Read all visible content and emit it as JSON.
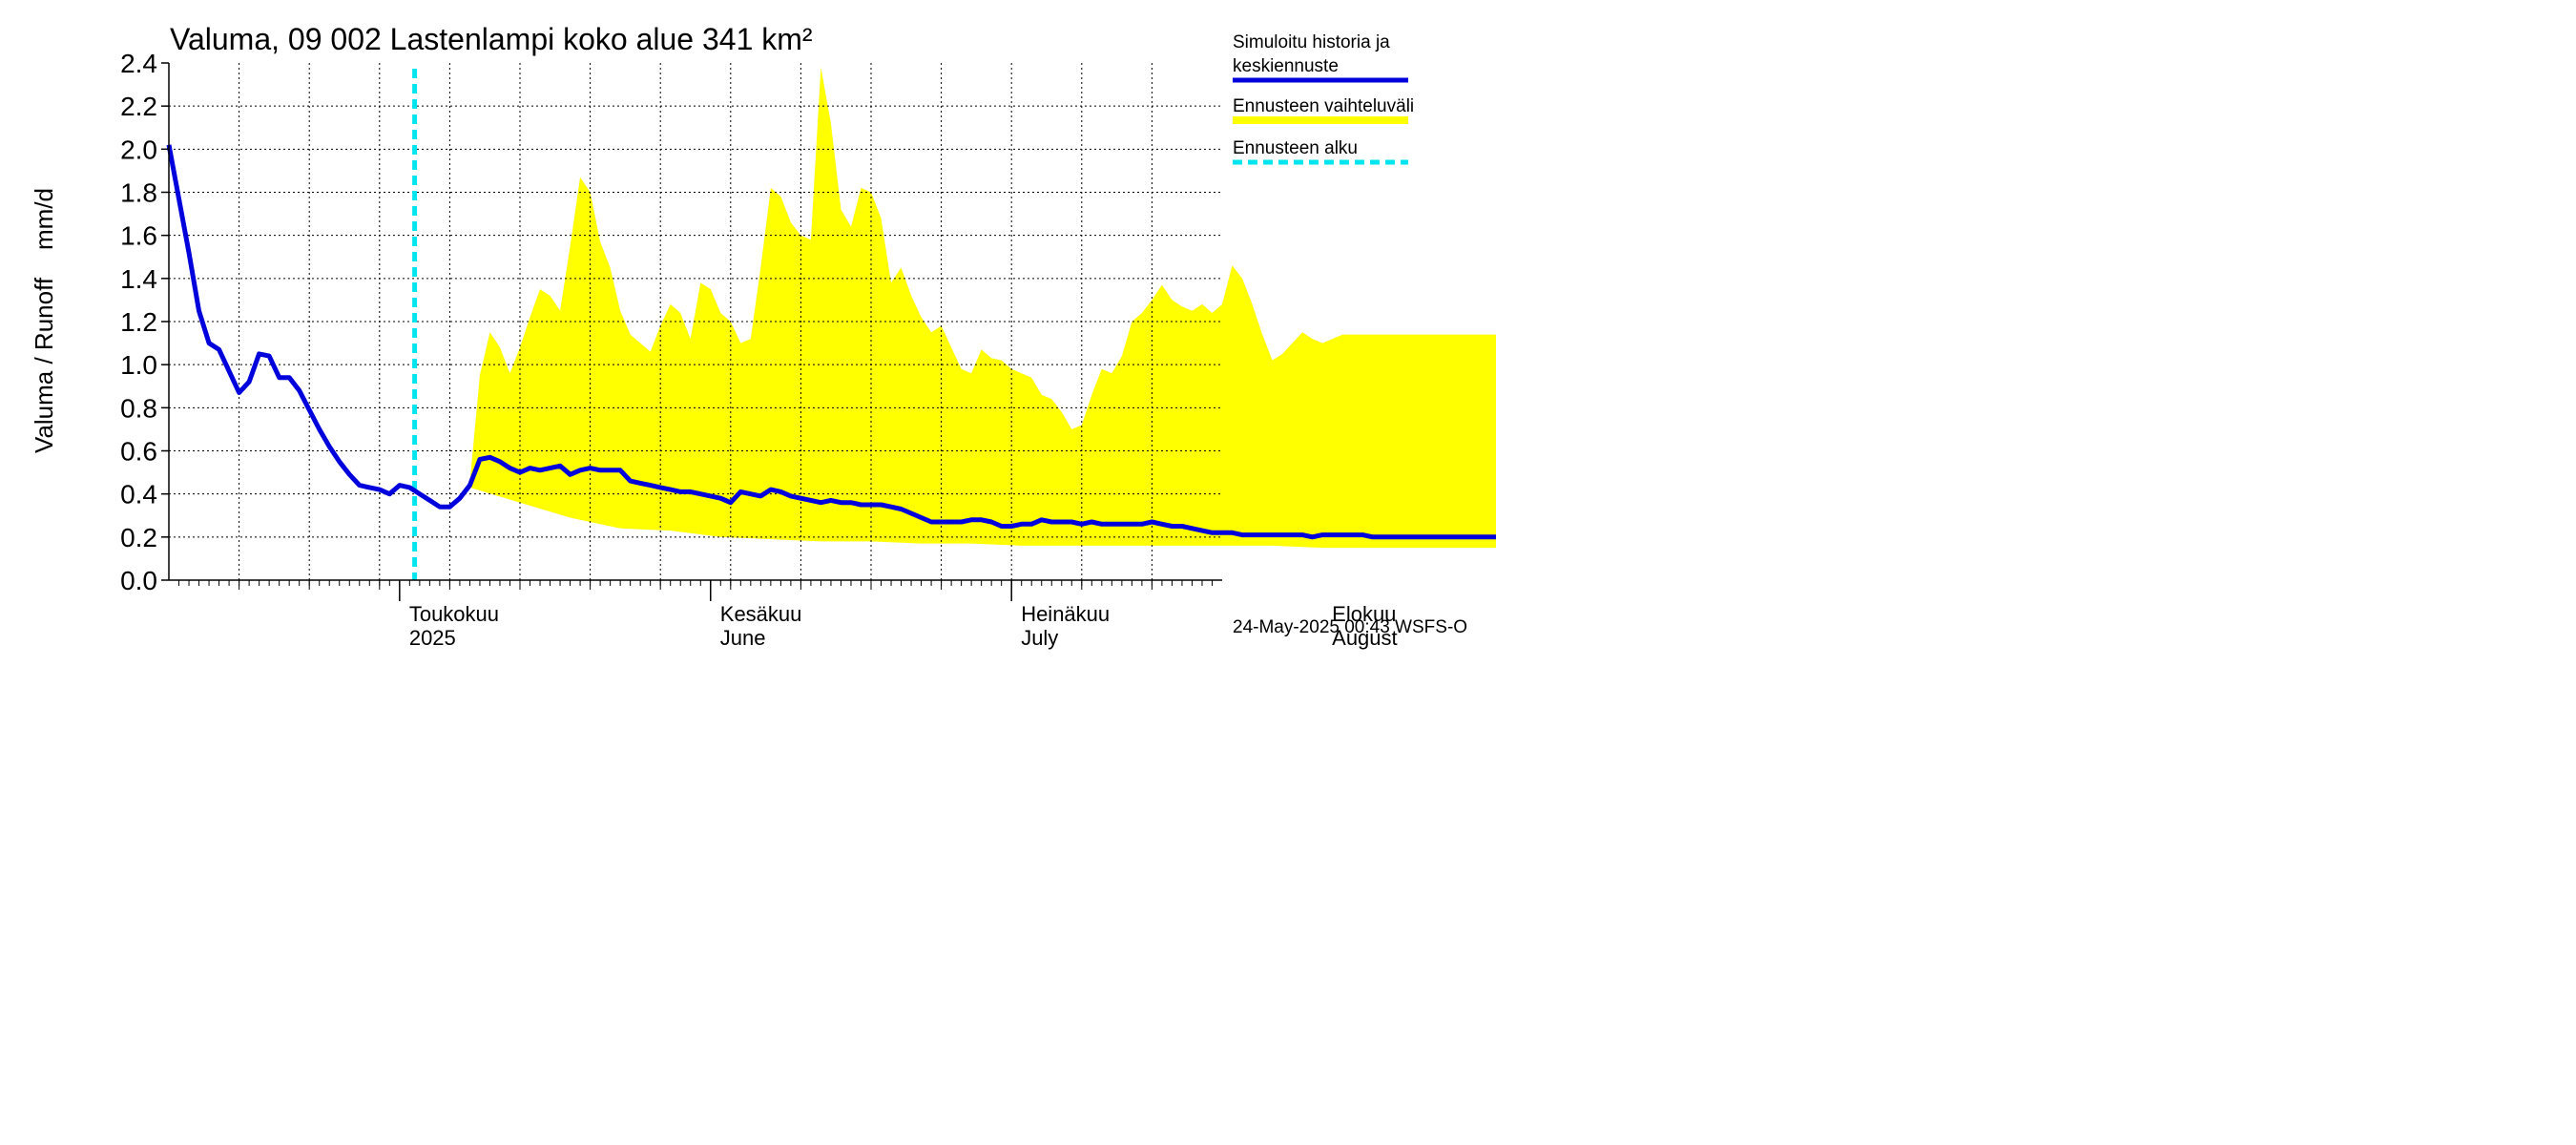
{
  "chart_data": {
    "type": "area",
    "title": "Valuma, 09 002 Lastenlampi koko alue 341 km²",
    "ylabel": "Valuma / Runoff    mm/d",
    "ylim": [
      0.0,
      2.4
    ],
    "yticks": [
      "0.0",
      "0.2",
      "0.4",
      "0.6",
      "0.8",
      "1.0",
      "1.2",
      "1.4",
      "1.6",
      "1.8",
      "2.0",
      "2.2",
      "2.4"
    ],
    "x_start": "2025-04-08",
    "x_days": 105,
    "forecast_start_day": 24.5,
    "month_labels": [
      {
        "line1": "Toukokuu",
        "line2": "2025",
        "day": 23
      },
      {
        "line1": "Kesäkuu",
        "line2": "June",
        "day": 54
      },
      {
        "line1": "Heinäkuu",
        "line2": "July",
        "day": 84
      },
      {
        "line1": "Elokuu",
        "line2": "August",
        "day": 115
      }
    ],
    "month_starts": [
      23,
      54,
      84,
      115
    ],
    "legend": [
      {
        "label": "Simuloitu historia ja keskiennuste",
        "line1": "Simuloitu historia ja",
        "line2": "keskiennuste",
        "color": "#0000dd",
        "style": "solid"
      },
      {
        "label": "Ennusteen vaihteluväli",
        "color": "#ffff00",
        "style": "band"
      },
      {
        "label": "Ennusteen alku",
        "color": "#00e5ee",
        "style": "dashed"
      }
    ],
    "footer": "24-May-2025 00:43 WSFS-O",
    "series": [
      {
        "name": "Simuloitu historia ja keskiennuste",
        "x": [
          0,
          1,
          2,
          3,
          4,
          5,
          6,
          7,
          8,
          9,
          10,
          11,
          12,
          13,
          14,
          15,
          16,
          17,
          18,
          19,
          20,
          21,
          22,
          23,
          24,
          25,
          26,
          27,
          28,
          29,
          30,
          31,
          32,
          33,
          34,
          35,
          36,
          37,
          38,
          39,
          40,
          41,
          42,
          43,
          44,
          45,
          46,
          47,
          48,
          49,
          50,
          51,
          52,
          53,
          54,
          55,
          56,
          57,
          58,
          59,
          60,
          61,
          62,
          63,
          64,
          65,
          66,
          67,
          68,
          69,
          70,
          71,
          72,
          73,
          74,
          75,
          76,
          77,
          78,
          79,
          80,
          81,
          82,
          83,
          84,
          85,
          86,
          87,
          88,
          89,
          90,
          91,
          92,
          93,
          94,
          95,
          96,
          97,
          98,
          99,
          100,
          101,
          102,
          103,
          104,
          105,
          106,
          107,
          108,
          109,
          110,
          111,
          112,
          113,
          114,
          115,
          116,
          117,
          118,
          119,
          120,
          121,
          122,
          123,
          124,
          125,
          126,
          127,
          128,
          129,
          130,
          131,
          132,
          133,
          134,
          135,
          136,
          137,
          138,
          139,
          140,
          141,
          142,
          143,
          144
        ],
        "values": [
          2.02,
          1.77,
          1.52,
          1.25,
          1.1,
          1.07,
          0.97,
          0.87,
          0.92,
          1.05,
          1.04,
          0.94,
          0.94,
          0.88,
          0.79,
          0.7,
          0.62,
          0.55,
          0.49,
          0.44,
          0.43,
          0.42,
          0.4,
          0.44,
          0.43,
          0.4,
          0.37,
          0.34,
          0.34,
          0.38,
          0.44,
          0.56,
          0.57,
          0.55,
          0.52,
          0.5,
          0.52,
          0.51,
          0.52,
          0.53,
          0.49,
          0.51,
          0.52,
          0.51,
          0.51,
          0.51,
          0.46,
          0.45,
          0.44,
          0.43,
          0.42,
          0.41,
          0.41,
          0.4,
          0.39,
          0.38,
          0.36,
          0.41,
          0.4,
          0.39,
          0.42,
          0.41,
          0.39,
          0.38,
          0.37,
          0.36,
          0.37,
          0.36,
          0.36,
          0.35,
          0.35,
          0.35,
          0.34,
          0.33,
          0.31,
          0.29,
          0.27,
          0.27,
          0.27,
          0.27,
          0.28,
          0.28,
          0.27,
          0.25,
          0.25,
          0.26,
          0.26,
          0.28,
          0.27,
          0.27,
          0.27,
          0.26,
          0.27,
          0.26,
          0.26,
          0.26,
          0.26,
          0.26,
          0.27,
          0.26,
          0.25,
          0.25,
          0.24,
          0.23,
          0.22,
          0.22,
          0.22,
          0.21,
          0.21,
          0.21,
          0.21,
          0.21,
          0.21,
          0.21,
          0.2,
          0.21,
          0.21,
          0.21,
          0.21,
          0.21,
          0.2,
          0.2,
          0.2,
          0.2,
          0.2,
          0.2,
          0.2,
          0.2,
          0.2,
          0.2,
          0.2,
          0.2,
          0.2,
          0.2,
          0.2,
          0.2,
          0.2,
          0.2,
          0.2,
          0.2,
          0.2,
          0.2,
          0.2,
          0.2,
          0.19
        ]
      },
      {
        "name": "Ennusteen vaihteluväli (yläraja)",
        "x": [
          30,
          31,
          32,
          33,
          34,
          35,
          36,
          37,
          38,
          39,
          40,
          41,
          42,
          43,
          44,
          45,
          46,
          47,
          48,
          49,
          50,
          51,
          52,
          53,
          54,
          55,
          56,
          57,
          58,
          59,
          60,
          61,
          62,
          63,
          64,
          65,
          66,
          67,
          68,
          69,
          70,
          71,
          72,
          73,
          74,
          75,
          76,
          77,
          78,
          79,
          80,
          81,
          82,
          83,
          84,
          85,
          86,
          87,
          88,
          89,
          90,
          91,
          92,
          93,
          94,
          95,
          96,
          97,
          98,
          99,
          100,
          101,
          102,
          103,
          104,
          105,
          106,
          107,
          108,
          109,
          110,
          111,
          112,
          113,
          114,
          115,
          116,
          117,
          118,
          119,
          120,
          121,
          122,
          123,
          124,
          125,
          126,
          127,
          128,
          129,
          130,
          131,
          132,
          133,
          134,
          135,
          136,
          137,
          138,
          139,
          140,
          141,
          142,
          143,
          144
        ],
        "values": [
          0.45,
          0.95,
          1.15,
          1.08,
          0.96,
          1.08,
          1.22,
          1.35,
          1.32,
          1.25,
          1.55,
          1.87,
          1.8,
          1.57,
          1.45,
          1.25,
          1.14,
          1.1,
          1.06,
          1.18,
          1.28,
          1.24,
          1.12,
          1.38,
          1.35,
          1.24,
          1.2,
          1.1,
          1.12,
          1.45,
          1.82,
          1.78,
          1.66,
          1.6,
          1.58,
          2.38,
          2.12,
          1.72,
          1.64,
          1.82,
          1.8,
          1.68,
          1.38,
          1.45,
          1.32,
          1.22,
          1.15,
          1.18,
          1.08,
          0.98,
          0.96,
          1.07,
          1.03,
          1.02,
          0.98,
          0.96,
          0.94,
          0.86,
          0.84,
          0.78,
          0.7,
          0.72,
          0.86,
          0.98,
          0.96,
          1.04,
          1.2,
          1.24,
          1.3,
          1.37,
          1.3,
          1.27,
          1.25,
          1.28,
          1.24,
          1.28,
          1.46,
          1.4,
          1.28,
          1.14,
          1.02,
          1.05,
          1.1,
          1.15,
          1.12,
          1.1,
          1.12,
          1.14,
          1.14,
          1.14,
          1.14,
          1.14,
          1.14,
          1.14,
          1.14,
          1.14,
          1.14,
          1.14,
          1.14,
          1.14,
          1.14,
          1.14,
          1.14,
          1.14,
          1.14,
          1.14,
          1.14,
          1.14,
          1.14,
          1.14,
          1.14,
          1.14,
          1.14,
          1.14,
          1.14
        ]
      },
      {
        "name": "Ennusteen vaihteluväli (alaraja)",
        "x": [
          30,
          35,
          40,
          45,
          50,
          55,
          60,
          65,
          70,
          75,
          80,
          85,
          90,
          95,
          100,
          105,
          110,
          115,
          120,
          125,
          130,
          135,
          140,
          144
        ],
        "values": [
          0.43,
          0.36,
          0.29,
          0.24,
          0.23,
          0.2,
          0.19,
          0.18,
          0.18,
          0.17,
          0.17,
          0.16,
          0.16,
          0.16,
          0.16,
          0.16,
          0.16,
          0.15,
          0.15,
          0.15,
          0.15,
          0.15,
          0.15,
          0.15
        ]
      }
    ]
  }
}
